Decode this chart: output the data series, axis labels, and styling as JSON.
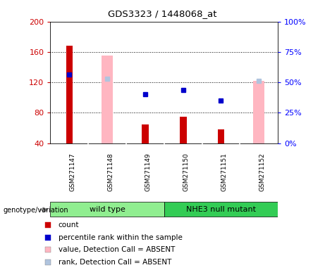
{
  "title": "GDS3323 / 1448068_at",
  "samples": [
    "GSM271147",
    "GSM271148",
    "GSM271149",
    "GSM271150",
    "GSM271151",
    "GSM271152"
  ],
  "groups": [
    {
      "name": "wild type",
      "color": "#90EE90",
      "samples": [
        0,
        1,
        2
      ]
    },
    {
      "name": "NHE3 null mutant",
      "color": "#33CC55",
      "samples": [
        3,
        4,
        5
      ]
    }
  ],
  "count_values": [
    168,
    0,
    65,
    75,
    58,
    0
  ],
  "percentile_rank": [
    130,
    0,
    104,
    110,
    96,
    0
  ],
  "absent_value": [
    0,
    155,
    0,
    0,
    0,
    122
  ],
  "absent_rank": [
    0,
    125,
    0,
    0,
    0,
    122
  ],
  "ylim_left": [
    40,
    200
  ],
  "ylim_right": [
    0,
    100
  ],
  "yticks_left": [
    40,
    80,
    120,
    160,
    200
  ],
  "yticks_right": [
    0,
    25,
    50,
    75,
    100
  ],
  "count_color": "#CC0000",
  "percentile_color": "#0000CC",
  "absent_value_color": "#FFB6C1",
  "absent_rank_color": "#B0C4DE",
  "legend_items": [
    {
      "label": "count",
      "color": "#CC0000"
    },
    {
      "label": "percentile rank within the sample",
      "color": "#0000CC"
    },
    {
      "label": "value, Detection Call = ABSENT",
      "color": "#FFB6C1"
    },
    {
      "label": "rank, Detection Call = ABSENT",
      "color": "#B0C4DE"
    }
  ],
  "genotype_label": "genotype/variation",
  "background_color": "#FFFFFF",
  "plot_bg_color": "#FFFFFF",
  "sample_bg_color": "#D3D3D3"
}
